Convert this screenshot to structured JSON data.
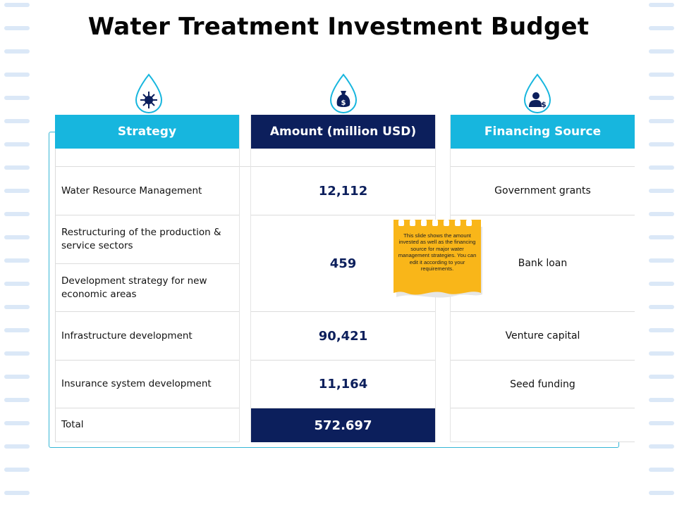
{
  "title": "Water Treatment Investment Budget",
  "colors": {
    "cyan": "#17b6de",
    "navy": "#0c1f5c",
    "note": "#f9b619",
    "frame": "#36b6d6"
  },
  "icons": [
    "network-gear-icon",
    "money-bag-icon",
    "investor-icon"
  ],
  "headers": {
    "strategy": "Strategy",
    "amount": "Amount (million USD)",
    "source": "Financing Source"
  },
  "rows": [
    {
      "strategy": "Water Resource Management",
      "amount": "12,112",
      "source": "Government grants"
    },
    {
      "strategy": "Restructuring of the production & service sectors"
    },
    {
      "strategy": "Development strategy for new economic areas"
    },
    {
      "strategy": "Infrastructure development",
      "amount": "90,421",
      "source": "Venture capital"
    },
    {
      "strategy": "Insurance system development",
      "amount": "11,164",
      "source": "Seed funding"
    }
  ],
  "merged": {
    "amount": "459",
    "source": "Bank loan"
  },
  "total": {
    "label": "Total",
    "amount": "572.697"
  },
  "note": {
    "text": "This slide shows the amount invested as well as the financing source for major water management strategies. You can edit it according to your requirements."
  }
}
